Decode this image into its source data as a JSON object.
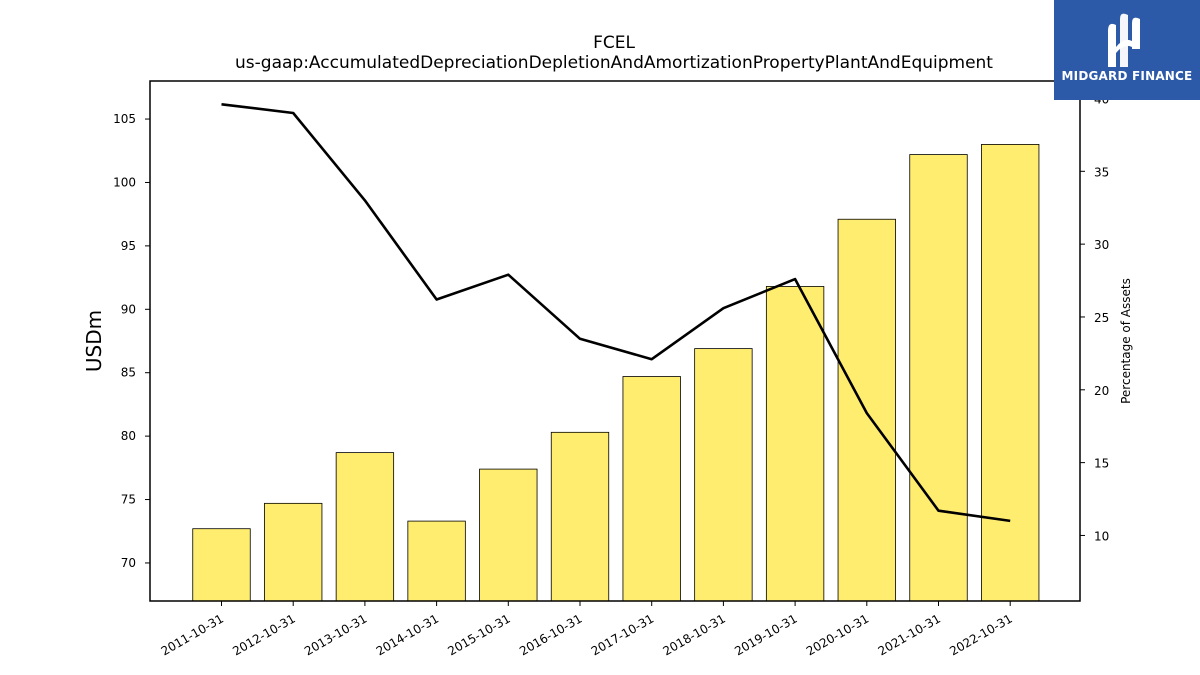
{
  "chart_data": {
    "type": "bar",
    "title": "FCEL",
    "subtitle": "us-gaap:AccumulatedDepreciationDepletionAndAmortizationPropertyPlantAndEquipment",
    "ylabel": "USDm",
    "y2label": "Percentage of Assets",
    "categories": [
      "2011-10-31",
      "2012-10-31",
      "2013-10-31",
      "2014-10-31",
      "2015-10-31",
      "2016-10-31",
      "2017-10-31",
      "2018-10-31",
      "2019-10-31",
      "2020-10-31",
      "2021-10-31",
      "2022-10-31"
    ],
    "ylim": [
      67,
      108
    ],
    "y2lim": [
      5.5,
      41.2
    ],
    "yticks": [
      70,
      75,
      80,
      85,
      90,
      95,
      100,
      105
    ],
    "y2ticks": [
      10,
      15,
      20,
      25,
      30,
      35,
      40
    ],
    "series": [
      {
        "type": "bar",
        "axis": "left",
        "color": "#ffed6f",
        "values": [
          72.7,
          74.7,
          78.7,
          73.3,
          77.4,
          80.3,
          84.7,
          86.9,
          91.8,
          97.1,
          102.2,
          103.0
        ]
      },
      {
        "type": "line",
        "axis": "right",
        "color": "#000000",
        "values": [
          39.6,
          39.0,
          33.0,
          26.2,
          27.9,
          23.5,
          22.1,
          25.6,
          27.6,
          18.4,
          11.7,
          11.0
        ]
      }
    ],
    "grid": false
  },
  "logo": {
    "text": "MIDGARD FINANCE",
    "color": "#2d5aa8"
  }
}
